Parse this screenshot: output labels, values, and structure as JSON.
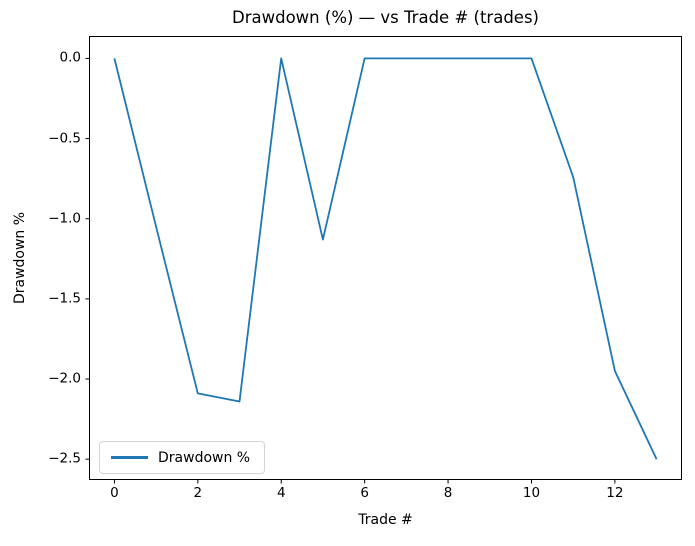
{
  "figure": {
    "title": "Drawdown (%) — vs Trade # (trades)",
    "xlabel": "Trade #",
    "ylabel": "Drawdown %",
    "legend_label": "Drawdown %",
    "line_color": "#1f77b4",
    "spine_color": "#000000",
    "background_color": "#ffffff"
  },
  "chart_data": {
    "type": "line",
    "title": "Drawdown (%) — vs Trade # (trades)",
    "xlabel": "Trade #",
    "ylabel": "Drawdown %",
    "legend": [
      "Drawdown %"
    ],
    "legend_position": "lower left",
    "grid": false,
    "x": [
      0,
      1,
      2,
      3,
      4,
      5,
      6,
      7,
      8,
      9,
      10,
      11,
      12,
      13
    ],
    "series": [
      {
        "name": "Drawdown %",
        "color": "#1f77b4",
        "values": [
          0.0,
          -1.05,
          -2.09,
          -2.14,
          0.0,
          -1.13,
          0.0,
          0.0,
          0.0,
          0.0,
          0.0,
          -0.74,
          -1.95,
          -2.5
        ]
      }
    ],
    "xlim": [
      -0.61,
      13.61
    ],
    "ylim": [
      -2.63,
      0.14
    ],
    "xticks": [
      0,
      2,
      4,
      6,
      8,
      10,
      12
    ],
    "yticks": [
      0.0,
      -0.5,
      -1.0,
      -1.5,
      -2.0,
      -2.5
    ]
  }
}
